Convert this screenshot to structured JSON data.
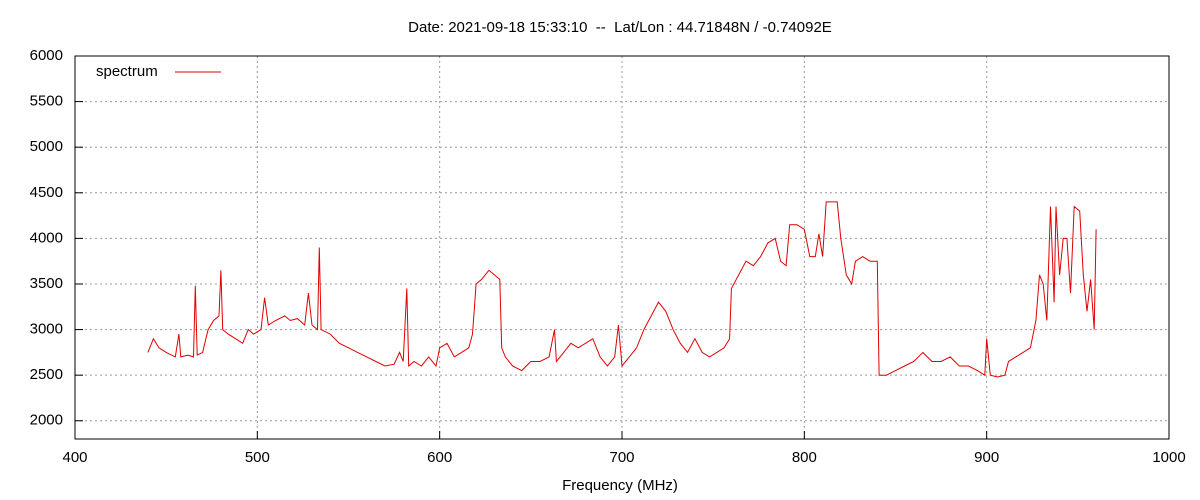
{
  "chart_data": {
    "type": "line",
    "title": "Date: 2021-09-18 15:33:10  --  Lat/Lon : 44.71848N / -0.74092E",
    "x_label": "Frequency (MHz)",
    "series": [
      {
        "name": "spectrum",
        "color": "#e00000",
        "x": [
          440,
          443,
          446,
          450,
          455,
          457,
          458,
          462,
          465,
          466,
          467,
          470,
          473,
          476,
          479,
          480,
          481,
          484,
          488,
          492,
          495,
          498,
          502,
          504,
          506,
          510,
          515,
          518,
          522,
          526,
          528,
          530,
          533,
          534,
          535,
          540,
          545,
          550,
          555,
          560,
          565,
          570,
          575,
          578,
          580,
          582,
          583,
          586,
          590,
          594,
          598,
          600,
          604,
          608,
          612,
          616,
          618,
          620,
          623,
          627,
          630,
          633,
          634,
          636,
          640,
          645,
          650,
          655,
          660,
          663,
          664,
          668,
          672,
          676,
          680,
          684,
          688,
          692,
          696,
          698,
          700,
          704,
          708,
          712,
          716,
          720,
          724,
          728,
          732,
          736,
          740,
          744,
          748,
          752,
          756,
          759,
          760,
          764,
          768,
          772,
          776,
          780,
          784,
          787,
          790,
          792,
          796,
          800,
          803,
          806,
          808,
          810,
          812,
          818,
          820,
          823,
          826,
          828,
          832,
          836,
          840,
          841,
          845,
          850,
          855,
          860,
          865,
          870,
          875,
          880,
          885,
          890,
          895,
          899,
          900,
          902,
          906,
          910,
          912,
          916,
          920,
          924,
          927,
          929,
          931,
          933,
          935,
          937,
          938,
          940,
          942,
          944,
          946,
          948,
          951,
          953,
          955,
          957,
          959,
          960
        ],
        "values": [
          2750,
          2900,
          2800,
          2750,
          2700,
          2950,
          2700,
          2720,
          2700,
          3480,
          2720,
          2750,
          3000,
          3100,
          3150,
          3650,
          3000,
          2950,
          2900,
          2850,
          3000,
          2950,
          3000,
          3350,
          3050,
          3100,
          3150,
          3100,
          3120,
          3050,
          3400,
          3050,
          3000,
          3900,
          3000,
          2950,
          2850,
          2800,
          2750,
          2700,
          2650,
          2600,
          2620,
          2750,
          2650,
          3450,
          2600,
          2650,
          2600,
          2700,
          2600,
          2800,
          2850,
          2700,
          2750,
          2800,
          2950,
          3500,
          3550,
          3650,
          3600,
          3550,
          2800,
          2700,
          2600,
          2550,
          2650,
          2650,
          2700,
          3000,
          2650,
          2750,
          2850,
          2800,
          2850,
          2900,
          2700,
          2600,
          2700,
          3050,
          2600,
          2700,
          2800,
          3000,
          3150,
          3300,
          3200,
          3000,
          2850,
          2750,
          2900,
          2750,
          2700,
          2750,
          2800,
          2900,
          3450,
          3600,
          3750,
          3700,
          3800,
          3950,
          4000,
          3750,
          3700,
          4150,
          4150,
          4100,
          3800,
          3800,
          4050,
          3800,
          4400,
          4400,
          4000,
          3600,
          3500,
          3750,
          3800,
          3750,
          3750,
          2500,
          2500,
          2550,
          2600,
          2650,
          2750,
          2650,
          2650,
          2700,
          2600,
          2600,
          2550,
          2500,
          2900,
          2500,
          2480,
          2500,
          2650,
          2700,
          2750,
          2800,
          3100,
          3600,
          3500,
          3100,
          4350,
          3300,
          4350,
          3600,
          4000,
          4000,
          3400,
          4350,
          4300,
          3600,
          3200,
          3550,
          3000,
          4100
        ]
      }
    ],
    "xlim": [
      400,
      1000
    ],
    "xticks": [
      400,
      500,
      600,
      700,
      800,
      900,
      1000
    ],
    "ylim": [
      1800,
      6000
    ],
    "yticks": [
      2000,
      2500,
      3000,
      3500,
      4000,
      4500,
      5000,
      5500,
      6000
    ],
    "grid": true,
    "legend": "top-left"
  }
}
